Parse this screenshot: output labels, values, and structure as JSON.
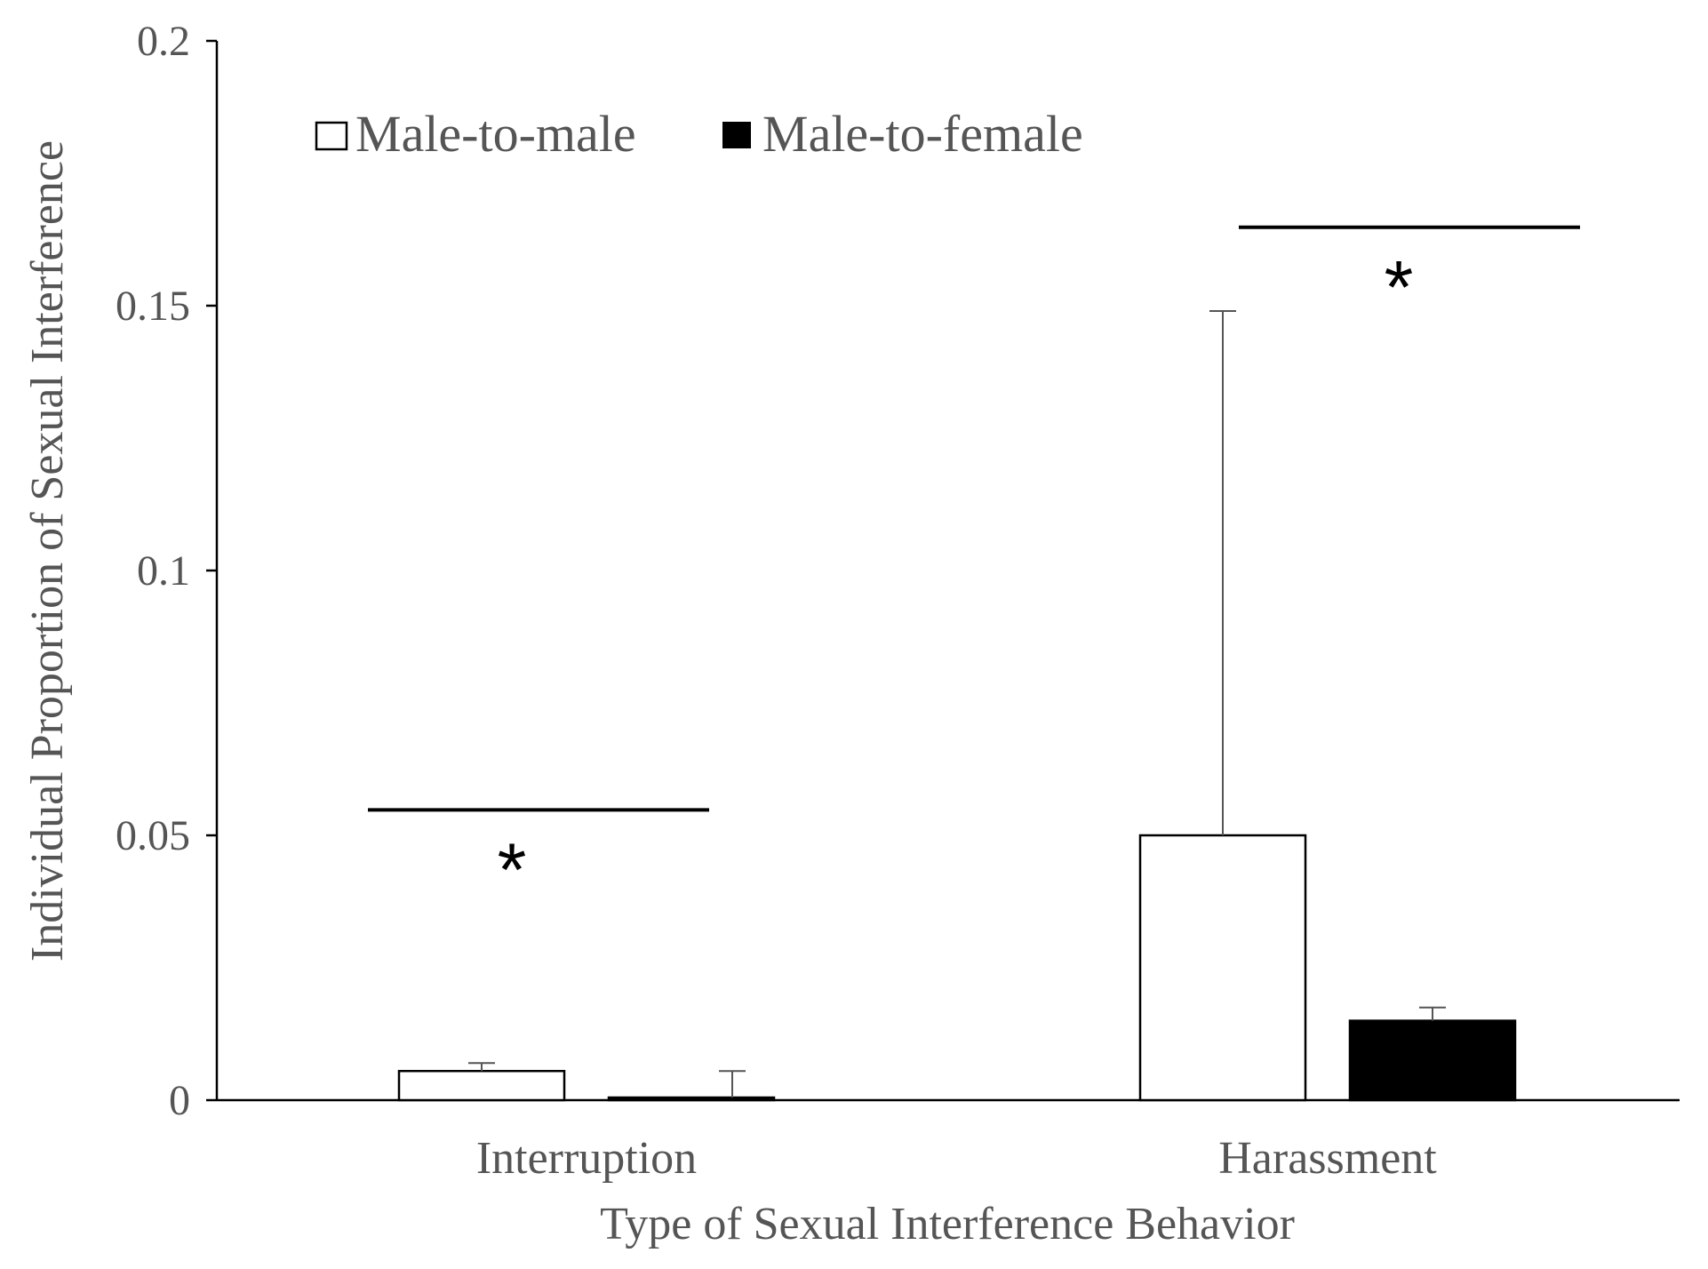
{
  "chart_data": {
    "type": "bar",
    "categories": [
      "Interruption",
      "Harassment"
    ],
    "series": [
      {
        "name": "Male-to-male",
        "values": [
          0.0055,
          0.05
        ],
        "error": [
          0.0015,
          0.099
        ],
        "color": "#ffffff"
      },
      {
        "name": "Male-to-female",
        "values": [
          0.0005,
          0.015
        ],
        "error": [
          0.005,
          0.0025
        ],
        "color": "#000000"
      }
    ],
    "xlabel": "Type of Sexual Interference Behavior",
    "ylabel": "Individual Proportion of  Sexual Interference",
    "ylim": [
      0,
      0.2
    ],
    "yticks": [
      "0",
      "0.05",
      "0.1",
      "0.15",
      "0.2"
    ],
    "ytick_values": [
      0,
      0.05,
      0.1,
      0.15,
      0.2
    ],
    "legend_position": "top-left",
    "grid": false,
    "significance": [
      {
        "category": "Interruption",
        "line_level": 0.0548,
        "label": "*"
      },
      {
        "category": "Harassment",
        "line_level": 0.1648,
        "label": "*"
      }
    ]
  }
}
